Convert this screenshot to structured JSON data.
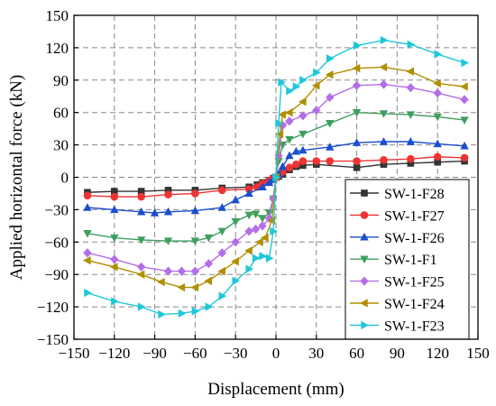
{
  "chart_data": {
    "type": "line",
    "xlabel": "Displacement (mm)",
    "ylabel": "Applied horizontal force (kN)",
    "xlim": [
      -150,
      150
    ],
    "ylim": [
      -150,
      150
    ],
    "xticks": [
      -150,
      -120,
      -90,
      -60,
      -30,
      0,
      30,
      60,
      90,
      120,
      150
    ],
    "yticks": [
      -150,
      -120,
      -90,
      -60,
      -30,
      0,
      30,
      60,
      90,
      120,
      150
    ],
    "xtick_labels": [
      "−150",
      "−120",
      "−90",
      "−60",
      "−30",
      "0",
      "30",
      "60",
      "90",
      "120",
      "150"
    ],
    "ytick_labels": [
      "−150",
      "−120",
      "−90",
      "−60",
      "−30",
      "0",
      "30",
      "60",
      "90",
      "120",
      "150"
    ],
    "grid": true,
    "grid_style": "dashed",
    "legend_position": "bottom-right",
    "series": [
      {
        "name": "SW-1-F28",
        "color": "#333333",
        "marker": "square",
        "points": [
          [
            -140,
            -14
          ],
          [
            -120,
            -13
          ],
          [
            -100,
            -13
          ],
          [
            -80,
            -12
          ],
          [
            -60,
            -12
          ],
          [
            -40,
            -10
          ],
          [
            -20,
            -9
          ],
          [
            -14,
            -7
          ],
          [
            -10,
            -5
          ],
          [
            -5,
            -3
          ],
          [
            -2,
            -1
          ],
          [
            0,
            0
          ],
          [
            2,
            1
          ],
          [
            5,
            3
          ],
          [
            10,
            7
          ],
          [
            15,
            10
          ],
          [
            20,
            11
          ],
          [
            30,
            12
          ],
          [
            60,
            9
          ],
          [
            80,
            12
          ],
          [
            100,
            13
          ],
          [
            120,
            14
          ],
          [
            140,
            15
          ]
        ]
      },
      {
        "name": "SW-1-F27",
        "color": "#ee3333",
        "marker": "circle",
        "points": [
          [
            -140,
            -17
          ],
          [
            -120,
            -18
          ],
          [
            -100,
            -18
          ],
          [
            -80,
            -16
          ],
          [
            -60,
            -15
          ],
          [
            -40,
            -12
          ],
          [
            -20,
            -11
          ],
          [
            -14,
            -9
          ],
          [
            -10,
            -6
          ],
          [
            -5,
            -3
          ],
          [
            -2,
            -1
          ],
          [
            0,
            0
          ],
          [
            2,
            2
          ],
          [
            5,
            5
          ],
          [
            10,
            9
          ],
          [
            15,
            12
          ],
          [
            20,
            15
          ],
          [
            30,
            15
          ],
          [
            40,
            15
          ],
          [
            60,
            15
          ],
          [
            80,
            16
          ],
          [
            100,
            17
          ],
          [
            120,
            19
          ],
          [
            140,
            18
          ]
        ]
      },
      {
        "name": "SW-1-F26",
        "color": "#1a4fcf",
        "marker": "triangle-up",
        "points": [
          [
            -140,
            -28
          ],
          [
            -120,
            -30
          ],
          [
            -100,
            -32
          ],
          [
            -90,
            -33
          ],
          [
            -80,
            -32
          ],
          [
            -60,
            -31
          ],
          [
            -40,
            -28
          ],
          [
            -30,
            -21
          ],
          [
            -20,
            -15
          ],
          [
            -10,
            -9
          ],
          [
            -5,
            -5
          ],
          [
            -2,
            -2
          ],
          [
            0,
            0
          ],
          [
            2,
            3
          ],
          [
            5,
            10
          ],
          [
            10,
            20
          ],
          [
            15,
            24
          ],
          [
            20,
            25
          ],
          [
            40,
            28
          ],
          [
            60,
            32
          ],
          [
            80,
            33
          ],
          [
            100,
            33
          ],
          [
            120,
            31
          ],
          [
            140,
            29
          ]
        ]
      },
      {
        "name": "SW-1-F1",
        "color": "#3f9f5f",
        "marker": "triangle-down",
        "points": [
          [
            -140,
            -52
          ],
          [
            -120,
            -56
          ],
          [
            -100,
            -58
          ],
          [
            -80,
            -59
          ],
          [
            -60,
            -59
          ],
          [
            -50,
            -56
          ],
          [
            -40,
            -50
          ],
          [
            -30,
            -41
          ],
          [
            -20,
            -35
          ],
          [
            -15,
            -34
          ],
          [
            -10,
            -38
          ],
          [
            -5,
            -33
          ],
          [
            -2,
            -20
          ],
          [
            0,
            0
          ],
          [
            2,
            15
          ],
          [
            5,
            30
          ],
          [
            10,
            35
          ],
          [
            20,
            40
          ],
          [
            40,
            50
          ],
          [
            60,
            60
          ],
          [
            80,
            59
          ],
          [
            100,
            58
          ],
          [
            120,
            56
          ],
          [
            140,
            53
          ]
        ]
      },
      {
        "name": "SW-1-F25",
        "color": "#b46fe8",
        "marker": "diamond",
        "points": [
          [
            -140,
            -70
          ],
          [
            -120,
            -76
          ],
          [
            -100,
            -83
          ],
          [
            -80,
            -87
          ],
          [
            -70,
            -87
          ],
          [
            -60,
            -87
          ],
          [
            -50,
            -80
          ],
          [
            -40,
            -70
          ],
          [
            -30,
            -60
          ],
          [
            -20,
            -50
          ],
          [
            -15,
            -48
          ],
          [
            -10,
            -45
          ],
          [
            -5,
            -38
          ],
          [
            -2,
            -20
          ],
          [
            0,
            0
          ],
          [
            2,
            20
          ],
          [
            5,
            48
          ],
          [
            10,
            52
          ],
          [
            20,
            57
          ],
          [
            30,
            62
          ],
          [
            40,
            74
          ],
          [
            60,
            85
          ],
          [
            80,
            86
          ],
          [
            100,
            83
          ],
          [
            120,
            78
          ],
          [
            140,
            72
          ]
        ]
      },
      {
        "name": "SW-1-F24",
        "color": "#b08f00",
        "marker": "triangle-left",
        "points": [
          [
            -140,
            -77
          ],
          [
            -120,
            -83
          ],
          [
            -100,
            -90
          ],
          [
            -85,
            -97
          ],
          [
            -70,
            -102
          ],
          [
            -60,
            -102
          ],
          [
            -50,
            -96
          ],
          [
            -40,
            -87
          ],
          [
            -30,
            -78
          ],
          [
            -20,
            -68
          ],
          [
            -12,
            -60
          ],
          [
            -8,
            -56
          ],
          [
            -3,
            -40
          ],
          [
            0,
            0
          ],
          [
            3,
            40
          ],
          [
            5,
            58
          ],
          [
            10,
            60
          ],
          [
            20,
            70
          ],
          [
            30,
            85
          ],
          [
            40,
            95
          ],
          [
            60,
            101
          ],
          [
            80,
            102
          ],
          [
            100,
            98
          ],
          [
            120,
            87
          ],
          [
            140,
            84
          ]
        ]
      },
      {
        "name": "SW-1-F23",
        "color": "#1ec8d8",
        "marker": "triangle-right",
        "points": [
          [
            -140,
            -107
          ],
          [
            -120,
            -115
          ],
          [
            -100,
            -120
          ],
          [
            -85,
            -127
          ],
          [
            -70,
            -126
          ],
          [
            -60,
            -124
          ],
          [
            -50,
            -120
          ],
          [
            -40,
            -110
          ],
          [
            -30,
            -96
          ],
          [
            -20,
            -85
          ],
          [
            -15,
            -75
          ],
          [
            -10,
            -73
          ],
          [
            -5,
            -75
          ],
          [
            -2,
            -50
          ],
          [
            0,
            0
          ],
          [
            2,
            50
          ],
          [
            4,
            88
          ],
          [
            10,
            80
          ],
          [
            15,
            84
          ],
          [
            20,
            90
          ],
          [
            30,
            97
          ],
          [
            40,
            110
          ],
          [
            60,
            122
          ],
          [
            80,
            127
          ],
          [
            100,
            123
          ],
          [
            120,
            114
          ],
          [
            140,
            106
          ]
        ]
      }
    ]
  }
}
